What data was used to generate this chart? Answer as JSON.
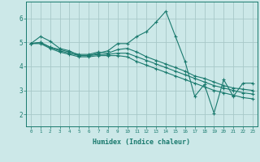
{
  "xlabel": "Humidex (Indice chaleur)",
  "ylabel": "",
  "bg_color": "#cce8e8",
  "line_color": "#1a7a6e",
  "grid_color": "#a8c8c8",
  "xlim": [
    -0.5,
    23.5
  ],
  "ylim": [
    1.5,
    6.7
  ],
  "yticks": [
    2,
    3,
    4,
    5,
    6
  ],
  "xticks": [
    0,
    1,
    2,
    3,
    4,
    5,
    6,
    7,
    8,
    9,
    10,
    11,
    12,
    13,
    14,
    15,
    16,
    17,
    18,
    19,
    20,
    21,
    22,
    23
  ],
  "lines": [
    {
      "x": [
        0,
        1,
        2,
        3,
        4,
        5,
        6,
        7,
        8,
        9,
        10,
        11,
        12,
        13,
        14,
        15,
        16,
        17,
        18,
        19,
        20,
        21,
        22,
        23
      ],
      "y": [
        4.95,
        5.25,
        5.05,
        4.75,
        4.65,
        4.45,
        4.45,
        4.55,
        4.65,
        4.95,
        4.95,
        5.25,
        5.45,
        5.85,
        6.3,
        5.25,
        4.2,
        2.75,
        3.25,
        2.05,
        3.45,
        2.75,
        3.3,
        3.3
      ]
    },
    {
      "x": [
        0,
        1,
        2,
        3,
        4,
        5,
        6,
        7,
        8,
        9,
        10,
        11,
        12,
        13,
        14,
        15,
        16,
        17,
        18,
        19,
        20,
        21,
        22,
        23
      ],
      "y": [
        4.95,
        5.0,
        4.8,
        4.7,
        4.6,
        4.5,
        4.5,
        4.6,
        4.55,
        4.7,
        4.75,
        4.6,
        4.4,
        4.25,
        4.1,
        3.95,
        3.8,
        3.6,
        3.5,
        3.35,
        3.2,
        3.1,
        3.05,
        3.0
      ]
    },
    {
      "x": [
        0,
        1,
        2,
        3,
        4,
        5,
        6,
        7,
        8,
        9,
        10,
        11,
        12,
        13,
        14,
        15,
        16,
        17,
        18,
        19,
        20,
        21,
        22,
        23
      ],
      "y": [
        4.95,
        5.0,
        4.8,
        4.65,
        4.55,
        4.45,
        4.45,
        4.5,
        4.5,
        4.55,
        4.55,
        4.4,
        4.25,
        4.1,
        3.95,
        3.8,
        3.65,
        3.5,
        3.35,
        3.2,
        3.1,
        3.0,
        2.9,
        2.85
      ]
    },
    {
      "x": [
        0,
        1,
        2,
        3,
        4,
        5,
        6,
        7,
        8,
        9,
        10,
        11,
        12,
        13,
        14,
        15,
        16,
        17,
        18,
        19,
        20,
        21,
        22,
        23
      ],
      "y": [
        4.95,
        4.95,
        4.75,
        4.6,
        4.5,
        4.4,
        4.4,
        4.45,
        4.45,
        4.45,
        4.4,
        4.2,
        4.05,
        3.9,
        3.75,
        3.6,
        3.45,
        3.3,
        3.15,
        3.0,
        2.9,
        2.8,
        2.7,
        2.65
      ]
    }
  ]
}
